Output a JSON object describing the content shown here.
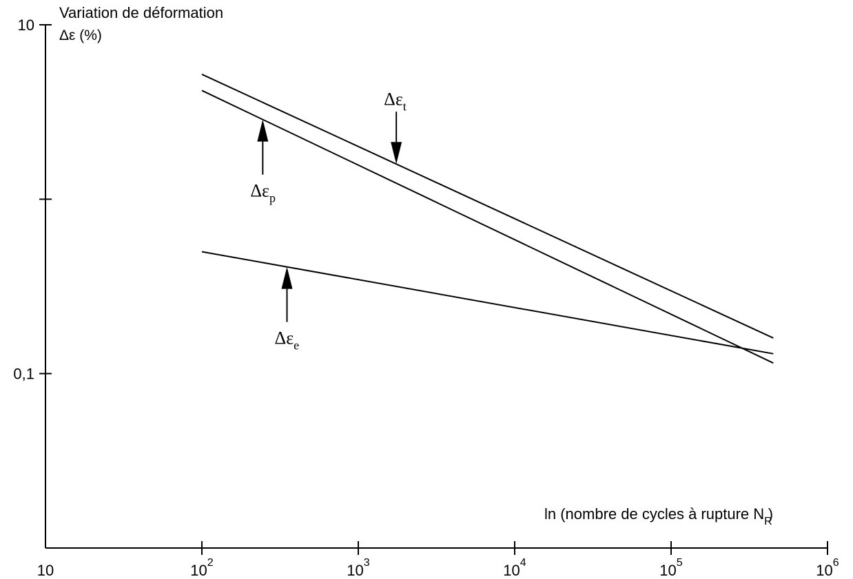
{
  "chart_data": {
    "type": "line",
    "title": "",
    "ylabel": "Variation de déformation",
    "ylabel_symbol": "Δε (%)",
    "xlabel": "ln (nombre de cycles à rupture N",
    "xlabel_subscript": "R",
    "xlabel_close": ")",
    "x_scale": "log",
    "y_scale": "log",
    "xlim": [
      10,
      1000000
    ],
    "ylim": [
      0.01,
      10
    ],
    "x_ticks": [
      {
        "base": "10",
        "exp": ""
      },
      {
        "base": "10",
        "exp": "2"
      },
      {
        "base": "10",
        "exp": "3"
      },
      {
        "base": "10",
        "exp": "4"
      },
      {
        "base": "10",
        "exp": "5"
      },
      {
        "base": "10",
        "exp": "6"
      }
    ],
    "y_tick_labels": [
      {
        "value": 10,
        "label": "10"
      },
      {
        "value": 1,
        "label": ""
      },
      {
        "value": 0.1,
        "label": "0,1"
      }
    ],
    "grid": false,
    "series": [
      {
        "symbol": "Δε",
        "sub": "t",
        "x": [
          100,
          450000
        ],
        "y": [
          5.2,
          0.16
        ]
      },
      {
        "symbol": "Δε",
        "sub": "p",
        "x": [
          100,
          450000
        ],
        "y": [
          4.2,
          0.115
        ]
      },
      {
        "symbol": "Δε",
        "sub": "e",
        "x": [
          100,
          450000
        ],
        "y": [
          0.5,
          0.13
        ]
      }
    ],
    "annotations": [
      {
        "series": 0,
        "x": 1750,
        "direction": "down"
      },
      {
        "series": 1,
        "x": 245,
        "direction": "up"
      },
      {
        "series": 2,
        "x": 350,
        "direction": "up"
      }
    ]
  }
}
